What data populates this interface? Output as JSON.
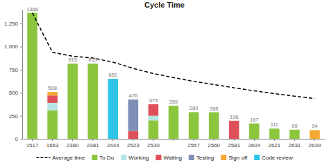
{
  "chart_data": {
    "type": "bar",
    "title": "Cycle Time",
    "stacked": true,
    "data_labels": true,
    "grid": false,
    "legend": "bottom",
    "categories": [
      "1517",
      "1653",
      "2380",
      "2381",
      "2444",
      "2523",
      "2530",
      null,
      "2557",
      "2560",
      "2581",
      "2604",
      "2621",
      "2631",
      "2639"
    ],
    "totals": [
      1366,
      508,
      815,
      815,
      651,
      426,
      375,
      359,
      289,
      288,
      196,
      167,
      111,
      99,
      94
    ],
    "ylim": [
      0,
      1400
    ],
    "yticks": [
      0,
      250,
      500,
      750,
      {
        "value": 1000,
        "label": "1,000"
      },
      {
        "value": 1250,
        "label": "1,250"
      }
    ],
    "series": [
      {
        "name": "Average time",
        "type": "line",
        "color": "#000000",
        "line_style": "dashed",
        "values": [
          1366,
          937,
          896,
          876,
          831,
          764,
          708,
          664,
          623,
          589,
          553,
          521,
          490,
          462,
          437
        ]
      },
      {
        "name": "To Do",
        "type": "bar",
        "color": "#8cc63e",
        "values": [
          1366,
          310,
          815,
          815,
          0,
          0,
          200,
          359,
          289,
          288,
          0,
          167,
          111,
          99,
          0
        ]
      },
      {
        "name": "Working",
        "type": "bar",
        "color": "#b5e5e5",
        "values": [
          0,
          80,
          0,
          0,
          0,
          0,
          50,
          0,
          0,
          0,
          0,
          0,
          0,
          0,
          0
        ]
      },
      {
        "name": "Waiting",
        "type": "bar",
        "color": "#e0505a",
        "values": [
          0,
          80,
          0,
          0,
          0,
          85,
          125,
          0,
          0,
          0,
          196,
          0,
          0,
          0,
          0
        ]
      },
      {
        "name": "Testing",
        "type": "bar",
        "color": "#7f8fb5",
        "values": [
          0,
          0,
          0,
          0,
          0,
          341,
          0,
          0,
          0,
          0,
          0,
          0,
          0,
          0,
          0
        ]
      },
      {
        "name": "Sign off",
        "type": "bar",
        "color": "#f7a830",
        "values": [
          0,
          38,
          0,
          0,
          0,
          0,
          0,
          0,
          0,
          0,
          0,
          0,
          0,
          0,
          94
        ]
      },
      {
        "name": "Code review",
        "type": "bar",
        "color": "#2ec5e6",
        "values": [
          0,
          0,
          0,
          0,
          651,
          0,
          0,
          0,
          0,
          0,
          0,
          0,
          0,
          0,
          0
        ]
      }
    ]
  }
}
